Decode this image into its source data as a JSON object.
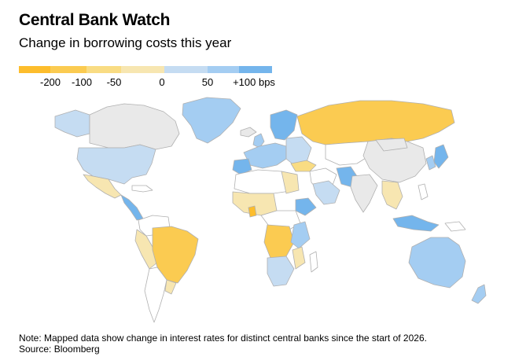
{
  "header": {
    "title": "Central Bank Watch",
    "subtitle": "Change in borrowing costs this year"
  },
  "legend": {
    "tick_labels": [
      "-200",
      "-100",
      "-50",
      "0",
      "50",
      "+100 bps"
    ],
    "colors": [
      "#fdbd2c",
      "#fbcb51",
      "#f9dc83",
      "#f7e6b1",
      "#c5dcf2",
      "#a4cdf2",
      "#74b5ec"
    ]
  },
  "map_colors": {
    "no_data": "#e9e9e9",
    "neutral": "#ffffff",
    "border": "#b0b0b0"
  },
  "footer": {
    "note": "Note: Mapped data show change in interest rates for distinct central banks since the start of 2026.",
    "source": "Source: Bloomberg"
  }
}
